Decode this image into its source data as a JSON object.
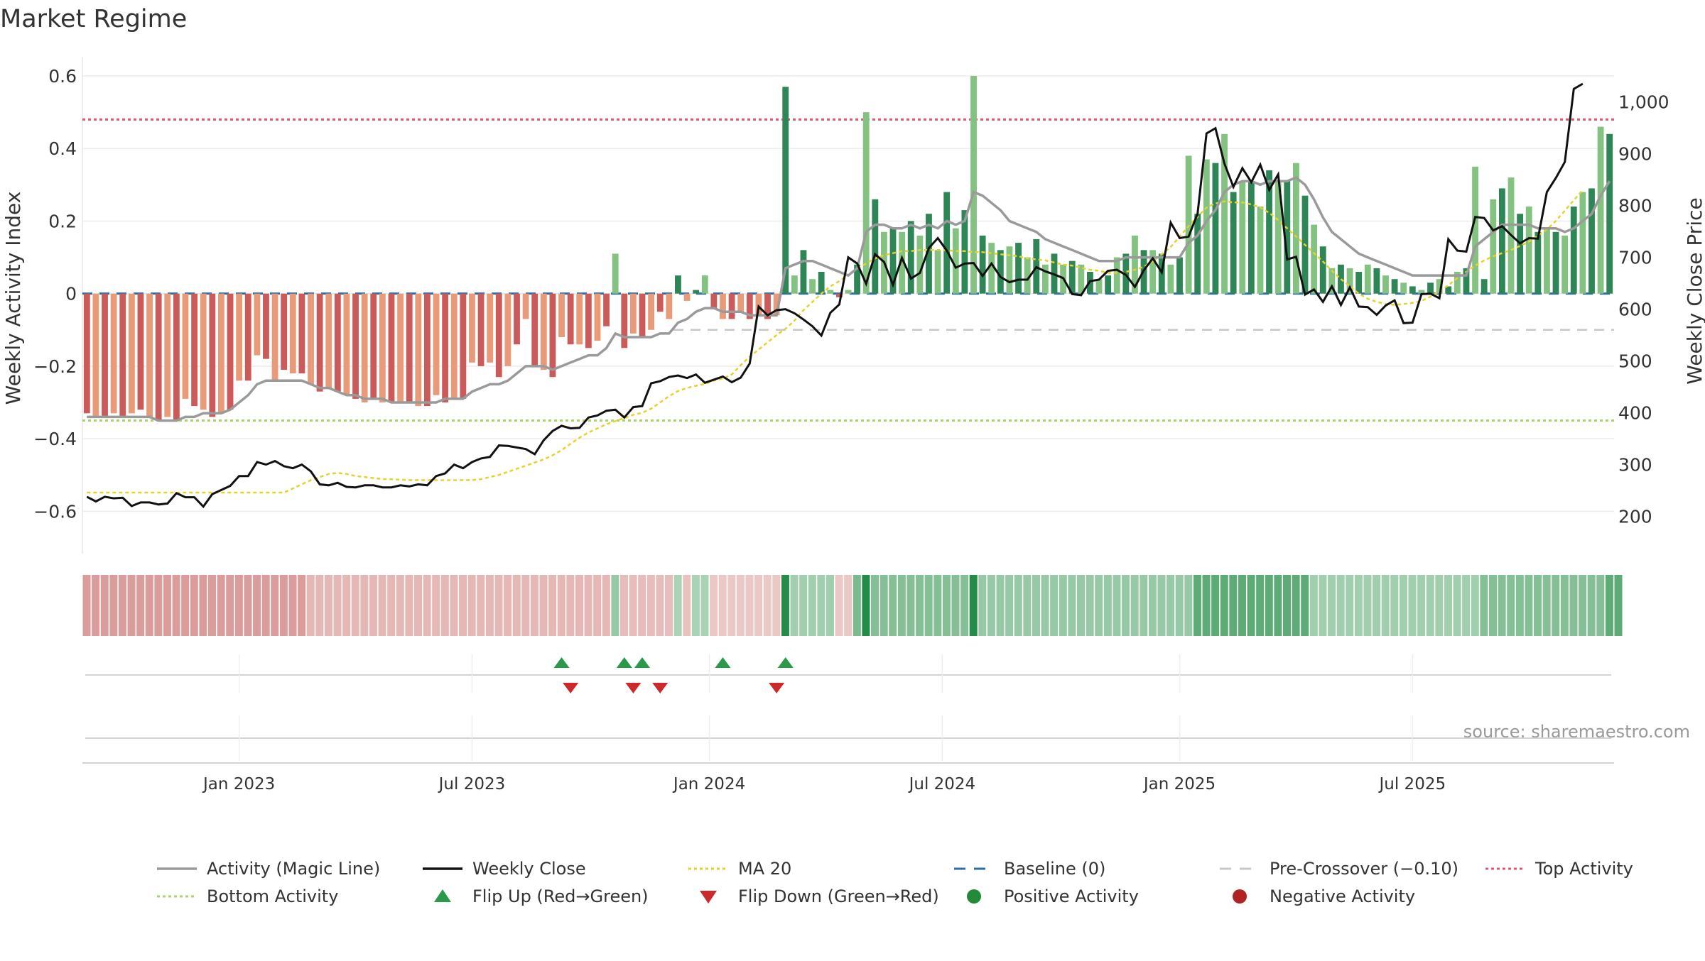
{
  "chart_data": {
    "type": "bar",
    "title": "Market Regime",
    "ylabel": "Weekly Activity Index",
    "y2label": "Weekly Close Price",
    "source": "source: sharemaestro.com",
    "ylim": [
      -0.66,
      0.6
    ],
    "y2lim": [
      168,
      1050
    ],
    "yticks": [
      "0.6",
      "0.4",
      "0.2",
      "0",
      "−0.2",
      "−0.4",
      "−0.6"
    ],
    "ytick_values": [
      0.6,
      0.4,
      0.2,
      0,
      -0.2,
      -0.4,
      -0.6
    ],
    "y2ticks": [
      "1,000",
      "900",
      "800",
      "700",
      "600",
      "500",
      "400",
      "300",
      "200"
    ],
    "y2tick_values": [
      1000,
      900,
      800,
      700,
      600,
      500,
      400,
      300,
      200
    ],
    "xticks": [
      "Jan 2023",
      "Jul 2023",
      "Jan 2024",
      "Jul 2024",
      "Jan 2025",
      "Jul 2025"
    ],
    "xtick_weeks": [
      17.5,
      43.5,
      70,
      96,
      122.5,
      148.5
    ],
    "x_start": "2022-09-05",
    "x_end": "2025-09-29",
    "reference_lines": {
      "baseline": 0,
      "pre_crossover": -0.1,
      "top_activity": 0.48,
      "bottom_activity": -0.35
    },
    "series": [
      {
        "name": "Weekly Activity",
        "values": [
          -0.33,
          -0.34,
          -0.34,
          -0.33,
          -0.34,
          -0.33,
          -0.32,
          -0.34,
          -0.35,
          -0.34,
          -0.35,
          -0.29,
          -0.31,
          -0.32,
          -0.34,
          -0.33,
          -0.32,
          -0.24,
          -0.24,
          -0.17,
          -0.18,
          -0.24,
          -0.21,
          -0.22,
          -0.22,
          -0.25,
          -0.27,
          -0.26,
          -0.27,
          -0.28,
          -0.29,
          -0.3,
          -0.29,
          -0.3,
          -0.3,
          -0.3,
          -0.3,
          -0.31,
          -0.31,
          -0.28,
          -0.3,
          -0.29,
          -0.29,
          -0.19,
          -0.2,
          -0.19,
          -0.23,
          -0.2,
          -0.14,
          -0.07,
          -0.2,
          -0.21,
          -0.23,
          -0.12,
          -0.14,
          -0.14,
          -0.15,
          -0.13,
          -0.09,
          0.11,
          -0.15,
          -0.11,
          -0.12,
          -0.1,
          -0.05,
          -0.07,
          0.05,
          -0.02,
          0.01,
          0.05,
          -0.04,
          -0.07,
          -0.07,
          -0.05,
          -0.07,
          -0.06,
          -0.07,
          -0.06,
          0.57,
          0.05,
          0.12,
          0.04,
          0.06,
          0.01,
          -0.01,
          0.01,
          0.08,
          0.5,
          0.26,
          0.17,
          0.18,
          0.17,
          0.2,
          0.16,
          0.22,
          0.12,
          0.28,
          0.18,
          0.23,
          0.6,
          0.16,
          0.14,
          0.12,
          0.13,
          0.14,
          0.1,
          0.15,
          0.08,
          0.11,
          0.08,
          0.09,
          0.08,
          0.06,
          0.04,
          0.05,
          0.1,
          0.11,
          0.16,
          0.12,
          0.12,
          0.11,
          0.08,
          0.1,
          0.38,
          0.22,
          0.37,
          0.36,
          0.44,
          0.28,
          0.31,
          0.31,
          0.24,
          0.34,
          0.31,
          0.31,
          0.36,
          0.27,
          0.19,
          0.13,
          0.07,
          0.08,
          0.07,
          0.06,
          0.08,
          0.07,
          0.05,
          0.04,
          0.03,
          0.02,
          0.01,
          0.03,
          0.04,
          0.02,
          0.06,
          0.07,
          0.35,
          0.04,
          0.26,
          0.29,
          0.32,
          0.22,
          0.24,
          0.17,
          0.18,
          0.17,
          0.16,
          0.24,
          0.28,
          0.29,
          0.46,
          0.44
        ]
      },
      {
        "name": "Activity (Magic Line)",
        "values": [
          -0.34,
          -0.34,
          -0.34,
          -0.34,
          -0.34,
          -0.34,
          -0.34,
          -0.34,
          -0.35,
          -0.35,
          -0.35,
          -0.34,
          -0.34,
          -0.33,
          -0.33,
          -0.33,
          -0.32,
          -0.3,
          -0.28,
          -0.25,
          -0.24,
          -0.24,
          -0.24,
          -0.24,
          -0.24,
          -0.25,
          -0.26,
          -0.26,
          -0.27,
          -0.28,
          -0.28,
          -0.29,
          -0.29,
          -0.29,
          -0.3,
          -0.3,
          -0.3,
          -0.3,
          -0.3,
          -0.3,
          -0.29,
          -0.29,
          -0.29,
          -0.27,
          -0.26,
          -0.25,
          -0.25,
          -0.24,
          -0.22,
          -0.2,
          -0.2,
          -0.2,
          -0.21,
          -0.2,
          -0.19,
          -0.18,
          -0.17,
          -0.17,
          -0.15,
          -0.11,
          -0.12,
          -0.12,
          -0.12,
          -0.12,
          -0.11,
          -0.11,
          -0.08,
          -0.07,
          -0.05,
          -0.04,
          -0.04,
          -0.05,
          -0.05,
          -0.05,
          -0.06,
          -0.06,
          -0.06,
          -0.06,
          0.07,
          0.08,
          0.09,
          0.09,
          0.08,
          0.07,
          0.06,
          0.05,
          0.07,
          0.17,
          0.19,
          0.19,
          0.18,
          0.18,
          0.19,
          0.18,
          0.19,
          0.18,
          0.2,
          0.19,
          0.2,
          0.28,
          0.27,
          0.25,
          0.23,
          0.2,
          0.19,
          0.18,
          0.17,
          0.15,
          0.14,
          0.13,
          0.12,
          0.11,
          0.1,
          0.09,
          0.09,
          0.09,
          0.1,
          0.1,
          0.1,
          0.1,
          0.1,
          0.1,
          0.1,
          0.14,
          0.16,
          0.2,
          0.23,
          0.28,
          0.3,
          0.31,
          0.31,
          0.3,
          0.31,
          0.31,
          0.31,
          0.32,
          0.3,
          0.26,
          0.21,
          0.17,
          0.15,
          0.13,
          0.11,
          0.1,
          0.09,
          0.08,
          0.07,
          0.06,
          0.05,
          0.05,
          0.05,
          0.05,
          0.05,
          0.05,
          0.05,
          0.13,
          0.15,
          0.17,
          0.19,
          0.19,
          0.19,
          0.19,
          0.18,
          0.18,
          0.18,
          0.17,
          0.18,
          0.2,
          0.22,
          0.27,
          0.31
        ]
      },
      {
        "name": "Weekly Close",
        "values": [
          238,
          229,
          238,
          235,
          236,
          220,
          227,
          227,
          223,
          225,
          245,
          237,
          237,
          219,
          243,
          251,
          259,
          278,
          278,
          305,
          300,
          307,
          297,
          293,
          300,
          287,
          262,
          260,
          265,
          257,
          256,
          260,
          260,
          256,
          256,
          260,
          258,
          262,
          260,
          278,
          283,
          300,
          293,
          305,
          312,
          315,
          337,
          336,
          333,
          330,
          320,
          347,
          365,
          375,
          370,
          371,
          391,
          395,
          404,
          406,
          391,
          411,
          413,
          457,
          461,
          469,
          472,
          467,
          474,
          458,
          464,
          470,
          459,
          468,
          495,
          605,
          588,
          598,
          600,
          592,
          580,
          567,
          549,
          593,
          609,
          700,
          688,
          649,
          706,
          691,
          647,
          699,
          659,
          670,
          718,
          737,
          713,
          680,
          688,
          689,
          664,
          688,
          662,
          652,
          657,
          657,
          681,
          673,
          667,
          660,
          629,
          627,
          654,
          657,
          674,
          676,
          666,
          643,
          675,
          698,
          671,
          767,
          737,
          740,
          784,
          939,
          949,
          881,
          836,
          872,
          845,
          879,
          830,
          860,
          696,
          701,
          628,
          638,
          614,
          644,
          608,
          642,
          605,
          604,
          589,
          607,
          617,
          573,
          574,
          629,
          630,
          621,
          735,
          713,
          711,
          778,
          776,
          752,
          760,
          743,
          727,
          737,
          736,
          826,
          853,
          884,
          1025,
          1035
        ]
      },
      {
        "name": "MA 20",
        "values": [
          246,
          246,
          246,
          246,
          246,
          246,
          246,
          246,
          246,
          246,
          246,
          246,
          246,
          246,
          246,
          246,
          246,
          246,
          246,
          246,
          246,
          246,
          246,
          254,
          262,
          270,
          276,
          282,
          284,
          282,
          278,
          276,
          274,
          272,
          272,
          271,
          270,
          270,
          270,
          270,
          270,
          270,
          270,
          270,
          272,
          276,
          280,
          286,
          292,
          298,
          304,
          310,
          318,
          328,
          340,
          352,
          362,
          370,
          378,
          384,
          390,
          396,
          400,
          408,
          420,
          432,
          442,
          448,
          452,
          456,
          462,
          466,
          474,
          492,
          508,
          522,
          536,
          550,
          562,
          578,
          598,
          614,
          630,
          644,
          654,
          666,
          678,
          688,
          698,
          704,
          708,
          712,
          712,
          714,
          714,
          714,
          714,
          712,
          712,
          710,
          710,
          708,
          706,
          704,
          702,
          698,
          696,
          694,
          690,
          686,
          684,
          680,
          676,
          674,
          670,
          670,
          672,
          676,
          682,
          692,
          706,
          720,
          740,
          760,
          778,
          796,
          804,
          808,
          806,
          806,
          802,
          796,
          786,
          772,
          756,
          740,
          724,
          708,
          692,
          674,
          658,
          644,
          630,
          620,
          614,
          610,
          608,
          610,
          612,
          616,
          624,
          634,
          646,
          660,
          672,
          684,
          694,
          702,
          708,
          714,
          722,
          730,
          742,
          754,
          770,
          790,
          810,
          830
        ]
      }
    ],
    "heat_strip_values": [
      0.65,
      0.65,
      0.65,
      0.65,
      0.65,
      0.65,
      0.65,
      0.65,
      0.65,
      0.65,
      0.65,
      0.65,
      0.65,
      0.65,
      0.65,
      0.65,
      0.65,
      0.65,
      0.65,
      0.65,
      0.65,
      0.65,
      0.65,
      0.65,
      0.65,
      0.4,
      0.4,
      0.4,
      0.4,
      0.4,
      0.4,
      0.4,
      0.4,
      0.4,
      0.4,
      0.4,
      0.4,
      0.4,
      0.4,
      0.4,
      0.4,
      0.4,
      0.4,
      0.4,
      0.4,
      0.4,
      0.4,
      0.4,
      0.4,
      0.4,
      0.4,
      0.4,
      0.4,
      0.4,
      0.4,
      0.4,
      0.4,
      0.4,
      0.4,
      -0.4,
      0.35,
      0.35,
      0.35,
      0.35,
      0.35,
      0.35,
      -0.3,
      0.3,
      -0.3,
      -0.3,
      0.25,
      0.25,
      0.25,
      0.25,
      0.25,
      0.25,
      0.25,
      0.25,
      -1,
      -0.35,
      -0.35,
      -0.35,
      -0.35,
      -0.35,
      0.25,
      0.25,
      -0.55,
      -1,
      -0.5,
      -0.5,
      -0.5,
      -0.5,
      -0.5,
      -0.5,
      -0.5,
      -0.5,
      -0.5,
      -0.5,
      -0.5,
      -1,
      -0.4,
      -0.4,
      -0.4,
      -0.4,
      -0.4,
      -0.4,
      -0.4,
      -0.4,
      -0.4,
      -0.4,
      -0.4,
      -0.4,
      -0.4,
      -0.4,
      -0.4,
      -0.4,
      -0.4,
      -0.4,
      -0.4,
      -0.4,
      -0.4,
      -0.4,
      -0.4,
      -0.4,
      -0.7,
      -0.7,
      -0.7,
      -0.7,
      -0.7,
      -0.7,
      -0.7,
      -0.7,
      -0.7,
      -0.7,
      -0.7,
      -0.7,
      -0.7,
      -0.35,
      -0.35,
      -0.35,
      -0.35,
      -0.35,
      -0.35,
      -0.35,
      -0.35,
      -0.35,
      -0.35,
      -0.35,
      -0.35,
      -0.35,
      -0.35,
      -0.35,
      -0.35,
      -0.35,
      -0.35,
      -0.35,
      -0.5,
      -0.5,
      -0.5,
      -0.5,
      -0.5,
      -0.5,
      -0.5,
      -0.5,
      -0.5,
      -0.5,
      -0.5,
      -0.5,
      -0.5,
      -0.5,
      -0.7,
      -0.7
    ],
    "flip_up_weeks": [
      53,
      60,
      62,
      71,
      78
    ],
    "flip_down_weeks": [
      54,
      61,
      64,
      77
    ],
    "colors": {
      "green_dark": "#2e8656",
      "green_light": "#84c281",
      "red_dark": "#cb5b5b",
      "salmon": "#e99a78",
      "magic_line": "#9a9a9a",
      "weekly_close": "#111111",
      "ma20": "#e6d22a",
      "baseline": "#2b6ea8",
      "pre_crossover": "#c8c8c8",
      "top_activity": "#e05574",
      "bottom_activity": "#a5d66a",
      "flip_up": "#2a9a4a",
      "flip_down": "#cc2a2a",
      "positive_activity": "#238b38",
      "negative_activity": "#b22222"
    },
    "legend": {
      "row1": [
        {
          "label": "Activity (Magic Line)",
          "style": "line",
          "color": "#9a9a9a"
        },
        {
          "label": "Weekly Close",
          "style": "line",
          "color": "#111111"
        },
        {
          "label": "MA 20",
          "style": "dotted",
          "color": "#e6d22a"
        },
        {
          "label": "Baseline (0)",
          "style": "dashed",
          "color": "#2b6ea8"
        },
        {
          "label": "Pre-Crossover (−0.10)",
          "style": "dashed",
          "color": "#c8c8c8"
        },
        {
          "label": "Top Activity",
          "style": "dotted",
          "color": "#e05574"
        }
      ],
      "row2": [
        {
          "label": "Bottom Activity",
          "style": "dotted",
          "color": "#a5d66a"
        },
        {
          "label": "Flip Up (Red→Green)",
          "style": "tri-up",
          "color": "#2a9a4a"
        },
        {
          "label": "Flip Down (Green→Red)",
          "style": "tri-down",
          "color": "#cc2a2a"
        },
        {
          "label": "Positive Activity",
          "style": "circle",
          "color": "#238b38"
        },
        {
          "label": "Negative Activity",
          "style": "circle",
          "color": "#b22222"
        }
      ]
    }
  }
}
